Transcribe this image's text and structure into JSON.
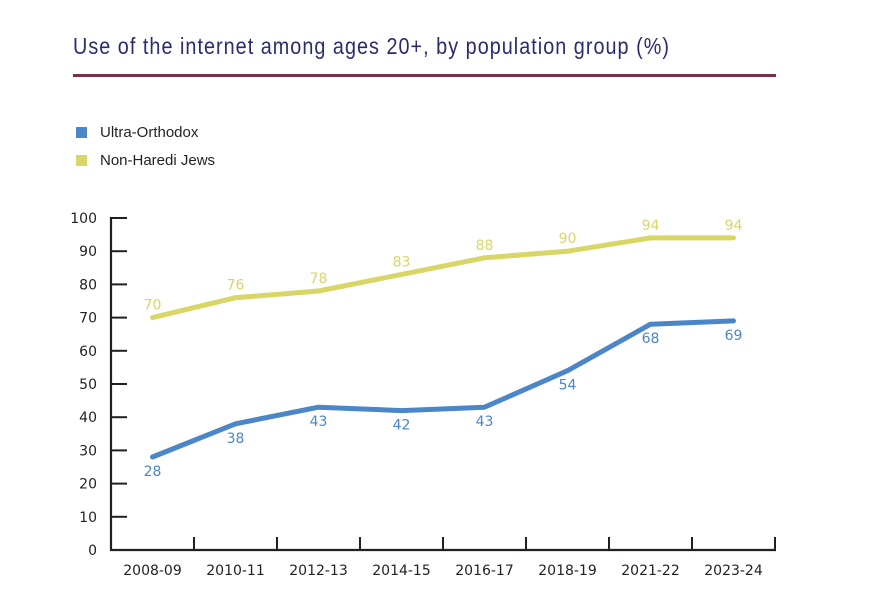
{
  "title": "Use of the internet among ages 20+, by population group (%)",
  "colors": {
    "title": "#2b2b6e",
    "rule": "#7a3150",
    "axis": "#231f20"
  },
  "chart_data": {
    "type": "line",
    "title": "Use of the internet among ages 20+, by population group (%)",
    "xlabel": "",
    "ylabel": "",
    "categories": [
      "2008-09",
      "2010-11",
      "2012-13",
      "2014-15",
      "2016-17",
      "2018-19",
      "2021-22",
      "2023-24"
    ],
    "ylim": [
      0,
      100
    ],
    "yticks": [
      0,
      10,
      20,
      30,
      40,
      50,
      60,
      70,
      80,
      90,
      100
    ],
    "grid": false,
    "legend_position": "top-left",
    "series": [
      {
        "name": "Ultra-Orthodox",
        "color": "#4a86c8",
        "values": [
          28,
          38,
          43,
          42,
          43,
          54,
          68,
          69
        ],
        "label_position": "below"
      },
      {
        "name": "Non-Haredi Jews",
        "color": "#d8d665",
        "values": [
          70,
          76,
          78,
          83,
          88,
          90,
          94,
          94
        ],
        "label_position": "above"
      }
    ]
  }
}
